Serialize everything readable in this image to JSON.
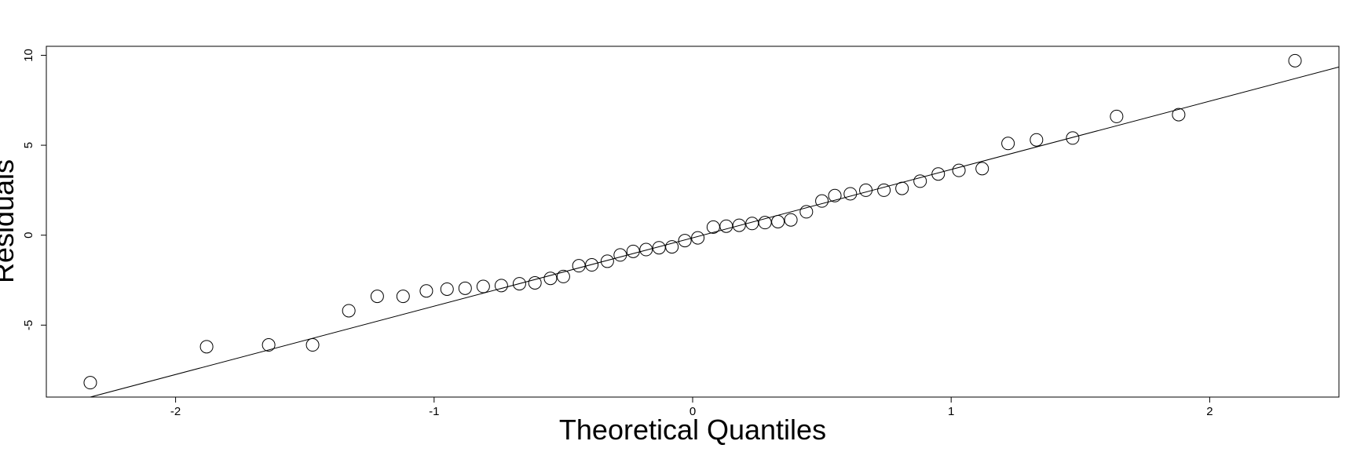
{
  "chart_data": {
    "type": "scatter",
    "title": "",
    "xlabel": "Theoretical Quantiles",
    "ylabel": "Residuals",
    "xlim": [
      -2.5,
      2.5
    ],
    "ylim": [
      -9,
      10.5
    ],
    "xticks": [
      -2,
      -1,
      0,
      1,
      2
    ],
    "yticks": [
      -5,
      0,
      5,
      10
    ],
    "grid": false,
    "reference_line": {
      "x1": -2.33,
      "y1": -9.0,
      "x2": 2.5,
      "y2": 9.35
    },
    "points": [
      {
        "x": -2.33,
        "y": -8.2
      },
      {
        "x": -1.88,
        "y": -6.2
      },
      {
        "x": -1.64,
        "y": -6.1
      },
      {
        "x": -1.47,
        "y": -6.1
      },
      {
        "x": -1.33,
        "y": -4.2
      },
      {
        "x": -1.22,
        "y": -3.4
      },
      {
        "x": -1.12,
        "y": -3.4
      },
      {
        "x": -1.03,
        "y": -3.1
      },
      {
        "x": -0.95,
        "y": -3.0
      },
      {
        "x": -0.88,
        "y": -2.95
      },
      {
        "x": -0.81,
        "y": -2.85
      },
      {
        "x": -0.74,
        "y": -2.8
      },
      {
        "x": -0.67,
        "y": -2.7
      },
      {
        "x": -0.61,
        "y": -2.65
      },
      {
        "x": -0.55,
        "y": -2.4
      },
      {
        "x": -0.5,
        "y": -2.3
      },
      {
        "x": -0.44,
        "y": -1.7
      },
      {
        "x": -0.39,
        "y": -1.65
      },
      {
        "x": -0.33,
        "y": -1.45
      },
      {
        "x": -0.28,
        "y": -1.1
      },
      {
        "x": -0.23,
        "y": -0.9
      },
      {
        "x": -0.18,
        "y": -0.8
      },
      {
        "x": -0.13,
        "y": -0.7
      },
      {
        "x": -0.08,
        "y": -0.65
      },
      {
        "x": -0.03,
        "y": -0.3
      },
      {
        "x": 0.02,
        "y": -0.15
      },
      {
        "x": 0.08,
        "y": 0.45
      },
      {
        "x": 0.13,
        "y": 0.5
      },
      {
        "x": 0.18,
        "y": 0.55
      },
      {
        "x": 0.23,
        "y": 0.65
      },
      {
        "x": 0.28,
        "y": 0.7
      },
      {
        "x": 0.33,
        "y": 0.75
      },
      {
        "x": 0.38,
        "y": 0.85
      },
      {
        "x": 0.44,
        "y": 1.3
      },
      {
        "x": 0.5,
        "y": 1.9
      },
      {
        "x": 0.55,
        "y": 2.2
      },
      {
        "x": 0.61,
        "y": 2.3
      },
      {
        "x": 0.67,
        "y": 2.5
      },
      {
        "x": 0.74,
        "y": 2.5
      },
      {
        "x": 0.81,
        "y": 2.6
      },
      {
        "x": 0.88,
        "y": 3.0
      },
      {
        "x": 0.95,
        "y": 3.4
      },
      {
        "x": 1.03,
        "y": 3.6
      },
      {
        "x": 1.12,
        "y": 3.7
      },
      {
        "x": 1.22,
        "y": 5.1
      },
      {
        "x": 1.33,
        "y": 5.3
      },
      {
        "x": 1.47,
        "y": 5.4
      },
      {
        "x": 1.64,
        "y": 6.6
      },
      {
        "x": 1.88,
        "y": 6.7
      },
      {
        "x": 2.33,
        "y": 9.7
      }
    ]
  }
}
